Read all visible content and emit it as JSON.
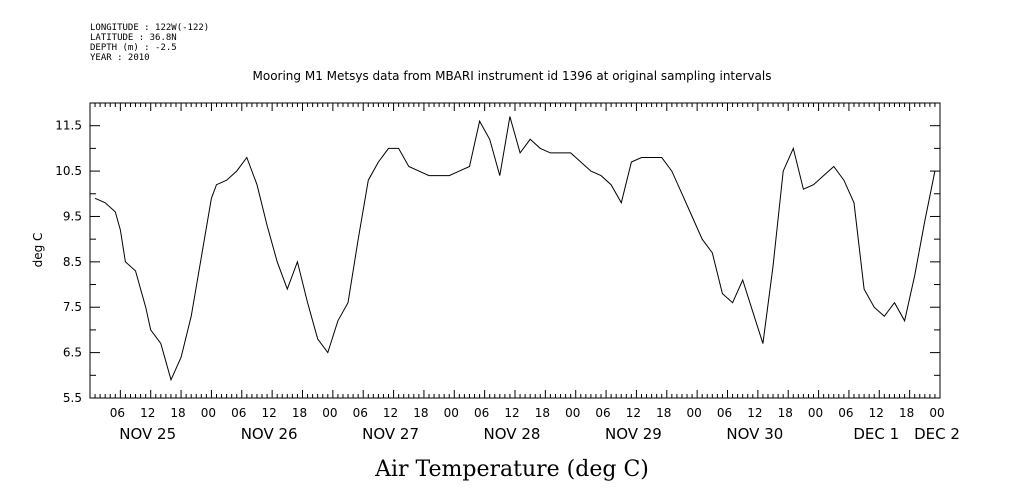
{
  "meta_lines": [
    "LONGITUDE : 122W(-122)",
    "LATITUDE : 36.8N",
    "DEPTH (m) : -2.5",
    "YEAR : 2010"
  ],
  "chart_data": {
    "type": "line",
    "title": "Mooring M1 Metsys data from MBARI instrument id 1396 at original sampling intervals",
    "xlabel": "Air Temperature (deg C)",
    "ylabel": "deg C",
    "ylim": [
      5.5,
      12.0
    ],
    "yticks": [
      "5.5",
      "6.5",
      "7.5",
      "8.5",
      "9.5",
      "10.5",
      "11.5"
    ],
    "xlim_hours": [
      0,
      168
    ],
    "hour_ticks": [
      "06",
      "12",
      "18",
      "00",
      "06",
      "12",
      "18",
      "00",
      "06",
      "12",
      "18",
      "00",
      "06",
      "12",
      "18",
      "00",
      "06",
      "12",
      "18",
      "00",
      "06",
      "12",
      "18",
      "00",
      "06",
      "12",
      "18",
      "00"
    ],
    "date_labels": [
      "NOV 25",
      "NOV 26",
      "NOV 27",
      "NOV 28",
      "NOV 29",
      "NOV 30",
      "DEC  1",
      "DEC  2"
    ],
    "grid": false,
    "x_hours": [
      1,
      3,
      5,
      6,
      7,
      9,
      11,
      12,
      14,
      16,
      18,
      20,
      22,
      24,
      25,
      27,
      29,
      31,
      33,
      35,
      37,
      39,
      41,
      43,
      45,
      47,
      49,
      51,
      53,
      55,
      57,
      59,
      61,
      63,
      65,
      67,
      69,
      71,
      73,
      75,
      77,
      79,
      81,
      83,
      85,
      87,
      89,
      91,
      93,
      95,
      97,
      99,
      101,
      103,
      105,
      107,
      109,
      111,
      113,
      115,
      117,
      119,
      121,
      123,
      125,
      127,
      129,
      131,
      133,
      135,
      137,
      139,
      141,
      143,
      145,
      147,
      149,
      151,
      153,
      155,
      157,
      159,
      161,
      163,
      165,
      167
    ],
    "values": [
      9.9,
      9.8,
      9.6,
      9.2,
      8.5,
      8.3,
      7.5,
      7.0,
      6.7,
      5.9,
      6.4,
      7.3,
      8.6,
      9.9,
      10.2,
      10.3,
      10.5,
      10.8,
      10.2,
      9.3,
      8.5,
      7.9,
      8.5,
      7.6,
      6.8,
      6.5,
      7.2,
      7.6,
      9.0,
      10.3,
      10.7,
      11.0,
      11.0,
      10.6,
      10.5,
      10.4,
      10.4,
      10.4,
      10.5,
      10.6,
      11.6,
      11.2,
      10.4,
      11.7,
      10.9,
      11.2,
      11.0,
      10.9,
      10.9,
      10.9,
      10.7,
      10.5,
      10.4,
      10.2,
      9.8,
      10.7,
      10.8,
      10.8,
      10.8,
      10.5,
      10.0,
      9.5,
      9.0,
      8.7,
      7.8,
      7.6,
      8.1,
      7.4,
      6.7,
      8.4,
      10.5,
      11.0,
      10.1,
      10.2,
      10.4,
      10.6,
      10.3,
      9.8,
      7.9,
      7.5,
      7.3,
      7.6,
      7.2,
      8.2,
      9.4,
      10.5
    ]
  }
}
